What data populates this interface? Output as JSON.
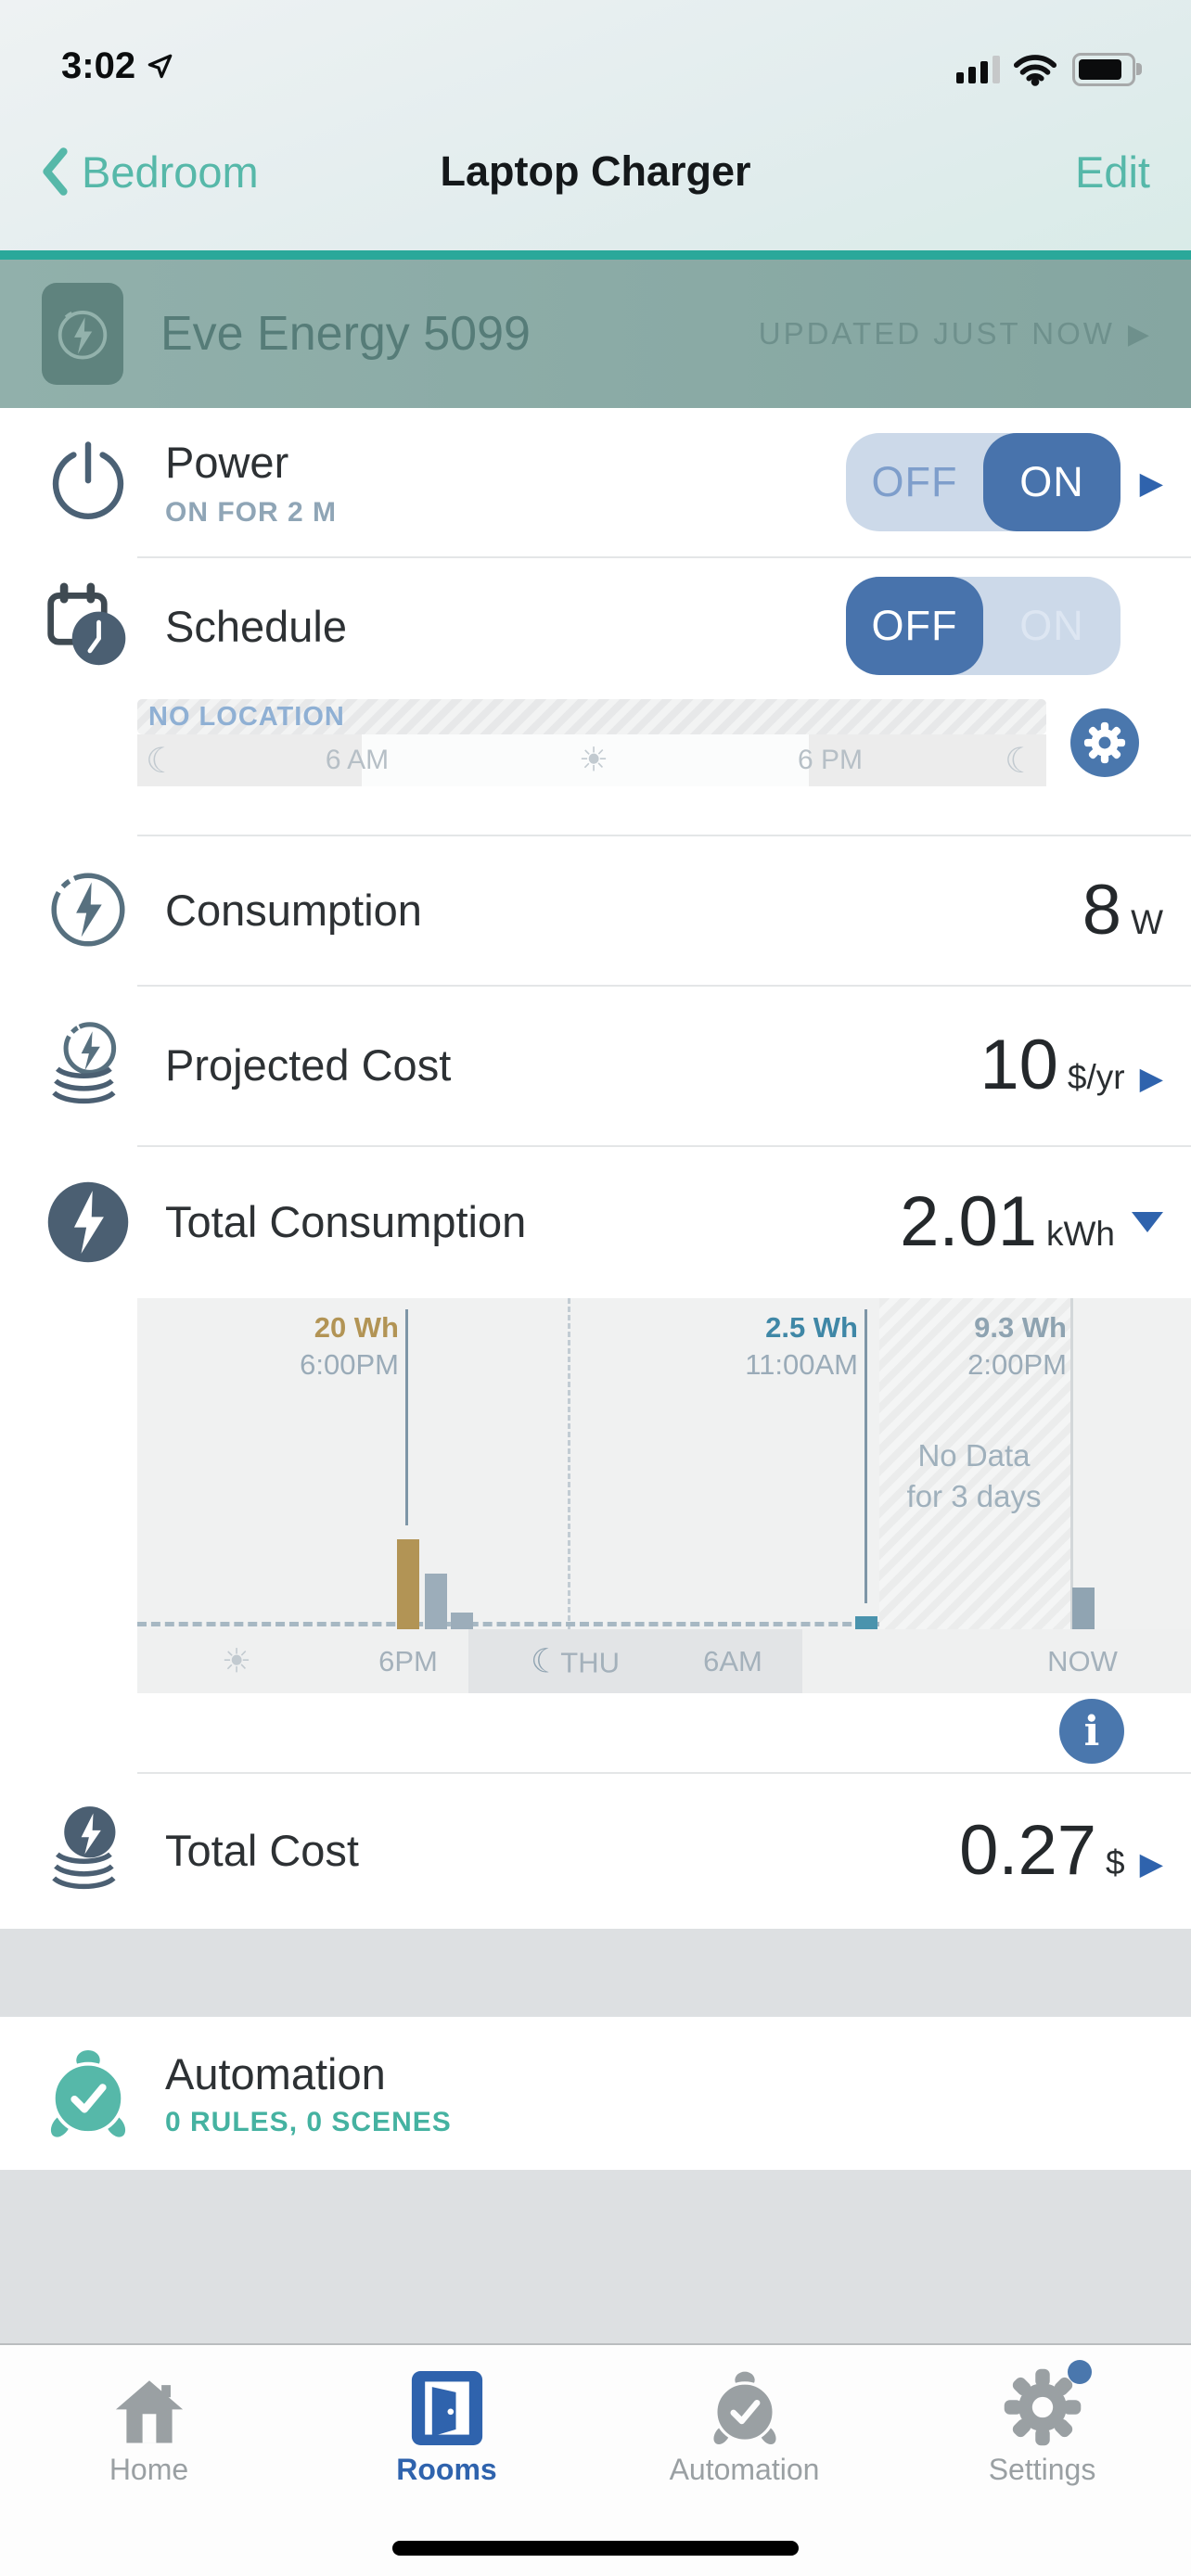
{
  "status_bar": {
    "time": "3:02"
  },
  "nav": {
    "back_label": "Bedroom",
    "title": "Laptop Charger",
    "edit_label": "Edit"
  },
  "banner": {
    "device_name": "Eve Energy 5099",
    "status": "UPDATED JUST NOW"
  },
  "rows": {
    "power": {
      "title": "Power",
      "subtitle": "ON FOR 2 M",
      "toggle_off": "OFF",
      "toggle_on": "ON",
      "state": "on"
    },
    "schedule": {
      "title": "Schedule",
      "toggle_off": "OFF",
      "toggle_on": "ON",
      "state": "off",
      "no_location": "NO LOCATION",
      "timeline": {
        "morning": "6 AM",
        "evening": "6 PM"
      }
    },
    "consumption": {
      "title": "Consumption",
      "value": "8",
      "unit": "W"
    },
    "projected_cost": {
      "title": "Projected Cost",
      "value": "10",
      "unit": "$/yr"
    },
    "total_consumption": {
      "title": "Total Consumption",
      "value": "2.01",
      "unit": "kWh"
    },
    "total_cost": {
      "title": "Total Cost",
      "value": "0.27",
      "unit": "$"
    },
    "automation": {
      "title": "Automation",
      "subtitle": "0 RULES, 0 SCENES"
    }
  },
  "chart": {
    "markers": [
      {
        "value": "20 Wh",
        "time": "6:00PM"
      },
      {
        "value": "2.5 Wh",
        "time": "11:00AM"
      },
      {
        "value": "9.3 Wh",
        "time": "2:00PM"
      }
    ],
    "no_data_line1": "No Data",
    "no_data_line2": "for 3 days",
    "axis": {
      "t1": "6PM",
      "t2": "THU",
      "t3": "6AM",
      "t4": "NOW"
    }
  },
  "chart_data": {
    "type": "bar",
    "title": "Total Consumption history",
    "unit": "Wh",
    "total": "2.01 kWh",
    "series": [
      {
        "name": "consumption",
        "points": [
          {
            "x": "Wed 6:00PM",
            "y": 20
          },
          {
            "x": "Wed 7:00PM",
            "y": 12
          },
          {
            "x": "Wed 8:00PM",
            "y": 3.5
          },
          {
            "x": "Thu 11:00AM",
            "y": 2.5
          },
          {
            "x": "Now 2:00PM",
            "y": 9.3
          }
        ]
      }
    ],
    "annotations": [
      "20 Wh @ 6:00PM",
      "2.5 Wh @ 11:00AM",
      "9.3 Wh @ 2:00PM",
      "No Data for 3 days"
    ],
    "x_axis_labels": [
      "6PM",
      "THU",
      "6AM",
      "NOW"
    ],
    "legend": "none",
    "grid": "off"
  },
  "glyphs": {
    "sun": "☀",
    "moon": "☾"
  },
  "tabs": [
    {
      "label": "Home"
    },
    {
      "label": "Rooms"
    },
    {
      "label": "Automation"
    },
    {
      "label": "Settings"
    }
  ],
  "colors": {
    "teal": "#56b8a9",
    "blue": "#4873ac",
    "banner_bg": "#8dada8",
    "gold": "#b29455",
    "chart_teal": "#4a93ad",
    "band_gray": "#dde0e2"
  }
}
